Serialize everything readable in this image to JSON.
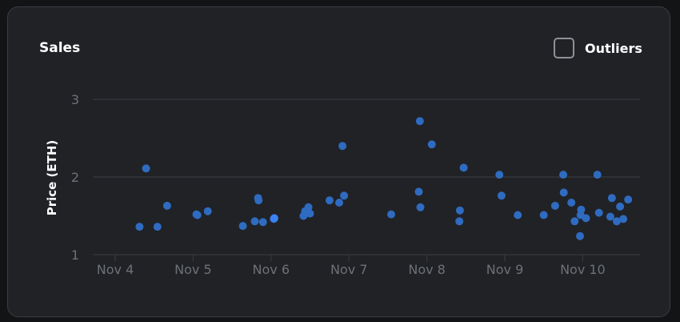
{
  "card": {
    "title": "Sales",
    "toggle_label": "Outliers"
  },
  "colors": {
    "background": "#202226",
    "point": "#2f6bc0",
    "point_highlight": "#3b82f6",
    "grid": "#3a3d42",
    "tick": "#6d7076"
  },
  "chart_data": {
    "type": "scatter",
    "title": "Sales",
    "xlabel": "",
    "ylabel": "Price (ETH)",
    "ylim": [
      1,
      3
    ],
    "yticks": [
      "1",
      "2",
      "3"
    ],
    "xticks": [
      "Nov 4",
      "Nov 5",
      "Nov 6",
      "Nov 7",
      "Nov 8",
      "Nov 9",
      "Nov 10"
    ],
    "grid": true,
    "points": [
      {
        "x": "2023-11-04T07:30",
        "y": 1.36
      },
      {
        "x": "2023-11-04T09:30",
        "y": 2.11
      },
      {
        "x": "2023-11-04T13:00",
        "y": 1.36
      },
      {
        "x": "2023-11-04T16:00",
        "y": 1.63
      },
      {
        "x": "2023-11-05T01:00",
        "y": 1.52
      },
      {
        "x": "2023-11-05T01:20",
        "y": 1.51
      },
      {
        "x": "2023-11-05T04:30",
        "y": 1.56
      },
      {
        "x": "2023-11-05T15:20",
        "y": 1.37
      },
      {
        "x": "2023-11-05T19:00",
        "y": 1.43
      },
      {
        "x": "2023-11-05T20:00",
        "y": 1.73
      },
      {
        "x": "2023-11-05T20:10",
        "y": 1.7
      },
      {
        "x": "2023-11-05T21:30",
        "y": 1.42
      },
      {
        "x": "2023-11-06T00:50",
        "y": 1.46
      },
      {
        "x": "2023-11-06T01:00",
        "y": 1.47,
        "highlight": true
      },
      {
        "x": "2023-11-06T10:00",
        "y": 1.5
      },
      {
        "x": "2023-11-06T10:30",
        "y": 1.56
      },
      {
        "x": "2023-11-06T11:30",
        "y": 1.61
      },
      {
        "x": "2023-11-06T12:00",
        "y": 1.53
      },
      {
        "x": "2023-11-06T18:00",
        "y": 1.7
      },
      {
        "x": "2023-11-06T21:00",
        "y": 1.67
      },
      {
        "x": "2023-11-06T22:00",
        "y": 2.4
      },
      {
        "x": "2023-11-06T22:30",
        "y": 1.76
      },
      {
        "x": "2023-11-07T13:00",
        "y": 1.52
      },
      {
        "x": "2023-11-07T21:30",
        "y": 1.81
      },
      {
        "x": "2023-11-07T21:50",
        "y": 2.72
      },
      {
        "x": "2023-11-07T22:00",
        "y": 1.61
      },
      {
        "x": "2023-11-08T01:30",
        "y": 2.42
      },
      {
        "x": "2023-11-08T10:00",
        "y": 1.43
      },
      {
        "x": "2023-11-08T10:10",
        "y": 1.57
      },
      {
        "x": "2023-11-08T11:20",
        "y": 2.12
      },
      {
        "x": "2023-11-08T22:20",
        "y": 2.03
      },
      {
        "x": "2023-11-08T23:00",
        "y": 1.76
      },
      {
        "x": "2023-11-09T04:00",
        "y": 1.51
      },
      {
        "x": "2023-11-09T12:00",
        "y": 1.51
      },
      {
        "x": "2023-11-09T15:30",
        "y": 1.63
      },
      {
        "x": "2023-11-09T18:00",
        "y": 2.03
      },
      {
        "x": "2023-11-09T18:10",
        "y": 1.8
      },
      {
        "x": "2023-11-09T20:30",
        "y": 1.67
      },
      {
        "x": "2023-11-09T21:30",
        "y": 1.43
      },
      {
        "x": "2023-11-09T23:10",
        "y": 1.24
      },
      {
        "x": "2023-11-09T23:20",
        "y": 1.51
      },
      {
        "x": "2023-11-09T23:30",
        "y": 1.58
      },
      {
        "x": "2023-11-10T01:00",
        "y": 1.47
      },
      {
        "x": "2023-11-10T04:30",
        "y": 2.03
      },
      {
        "x": "2023-11-10T05:00",
        "y": 1.54
      },
      {
        "x": "2023-11-10T08:30",
        "y": 1.49
      },
      {
        "x": "2023-11-10T09:00",
        "y": 1.73
      },
      {
        "x": "2023-11-10T10:30",
        "y": 1.43
      },
      {
        "x": "2023-11-10T11:30",
        "y": 1.62
      },
      {
        "x": "2023-11-10T12:30",
        "y": 1.46
      },
      {
        "x": "2023-11-10T14:00",
        "y": 1.71
      }
    ]
  }
}
